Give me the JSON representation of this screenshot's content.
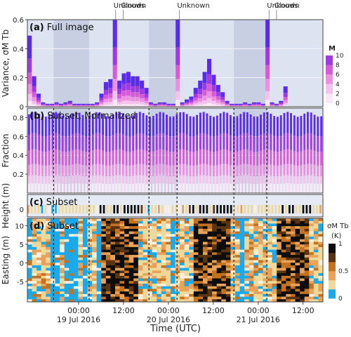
{
  "xlabel": "Time (UTC)",
  "x_ticks": [
    {
      "label": "00:00",
      "sub": "19 Jul 2016",
      "t": 13.7
    },
    {
      "label": "12:00",
      "sub": "",
      "t": 25.7
    },
    {
      "label": "00:00",
      "sub": "20 Jul 2016",
      "t": 37.7
    },
    {
      "label": "12:00",
      "sub": "",
      "t": 49.7
    },
    {
      "label": "00:00",
      "sub": "21 Jul 2016",
      "t": 61.7
    },
    {
      "label": "12:00",
      "sub": "",
      "t": 73.7
    }
  ],
  "time_range": [
    0,
    79
  ],
  "colors": {
    "band_light": "#dde3f1",
    "band_dark": "#c9cfe3",
    "panel_bg": "#e6eaf4",
    "m_scale": [
      "#fbe8f7",
      "#f4c2ec",
      "#ec8fe0",
      "#d75ad6",
      "#9f3ae1",
      "#5a2be8"
    ]
  },
  "annotations": [
    {
      "label": "Unknown",
      "t": 23.6
    },
    {
      "label": "Clouds",
      "t": 25.6
    },
    {
      "label": "Unknown",
      "t": 40.6
    },
    {
      "label": "Unknown",
      "t": 64.6
    },
    {
      "label": "Clouds",
      "t": 66.6
    }
  ],
  "dashed_times": [
    7.0,
    16.5,
    32.5,
    40.0,
    55.2,
    64.0
  ],
  "chart_data": [
    {
      "type": "bar",
      "panel": "(a)",
      "title": "Full image",
      "ylabel": "Variance, σ_M T_b",
      "ylim": [
        0,
        0.6
      ],
      "yticks": [
        0,
        0.2,
        0.4,
        0.6
      ],
      "legend_title": "M",
      "legend_ticks": [
        0,
        2,
        4,
        6,
        8,
        10
      ],
      "stacked_by": "M",
      "x": [
        0.6,
        1.8,
        3.0,
        4.2,
        5.4,
        6.6,
        7.8,
        9.0,
        10.2,
        11.4,
        12.6,
        13.8,
        15.0,
        16.2,
        17.4,
        18.6,
        19.8,
        21.0,
        22.2,
        23.4,
        24.6,
        25.8,
        27.0,
        28.2,
        29.4,
        30.6,
        31.8,
        33.0,
        34.2,
        35.4,
        36.6,
        37.8,
        39.0,
        40.2,
        41.4,
        42.6,
        43.8,
        45.0,
        46.2,
        47.4,
        48.6,
        49.8,
        51.0,
        52.2,
        53.4,
        54.6,
        55.8,
        57.0,
        58.2,
        59.4,
        60.6,
        61.8,
        63.0,
        64.2,
        65.4,
        66.6,
        67.8,
        69.0
      ],
      "values": [
        0.49,
        0.21,
        0.09,
        0.03,
        0.02,
        0.02,
        0.03,
        0.02,
        0.03,
        0.04,
        0.02,
        0.02,
        0.02,
        0.02,
        0.02,
        0.03,
        0.09,
        0.17,
        0.19,
        0.6,
        0.18,
        0.23,
        0.24,
        0.21,
        0.21,
        0.18,
        0.13,
        0.03,
        0.02,
        0.03,
        0.03,
        0.02,
        0.02,
        0.6,
        0.03,
        0.05,
        0.07,
        0.13,
        0.18,
        0.24,
        0.33,
        0.22,
        0.15,
        0.1,
        0.04,
        0.02,
        0.02,
        0.02,
        0.03,
        0.02,
        0.03,
        0.03,
        0.02,
        0.6,
        0.03,
        0.02,
        0.04,
        0.14
      ]
    },
    {
      "type": "bar",
      "panel": "(b)",
      "title": "Subset, Normalized",
      "ylabel": "Fraction",
      "ylim": [
        0,
        0.9
      ],
      "yticks": [
        0.2,
        0.4,
        0.6,
        0.8
      ],
      "bar_count": 88,
      "fraction_peak": 0.86
    },
    {
      "type": "heatmap",
      "panel": "(c)",
      "title": "Subset",
      "ylabel": "Height (m)",
      "yticks": [
        0
      ]
    },
    {
      "type": "heatmap",
      "panel": "(d)",
      "title": "Subset",
      "ylabel": "Easting (m)",
      "ylim": [
        -10.5,
        12
      ],
      "yticks": [
        10,
        5,
        0,
        -5
      ],
      "colorbar_label": "σ_M T_b",
      "colorbar_unit": "(K)",
      "colorbar_ticks": [
        0,
        0.5,
        1
      ],
      "colors": [
        "#1aa9ea",
        "#eed89a",
        "#e8a25a",
        "#c3721f",
        "#5a3410",
        "#0d0d0d"
      ]
    }
  ]
}
